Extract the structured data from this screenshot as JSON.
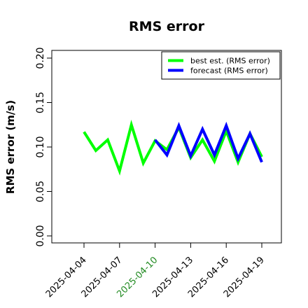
{
  "chart_data": {
    "type": "line",
    "title": "RMS error",
    "xlabel": "",
    "ylabel": "RMS error (m/s)",
    "ylim": [
      0,
      0.21
    ],
    "yticks": [
      "0.00",
      "0.05",
      "0.10",
      "0.15",
      "0.20"
    ],
    "ytick_values": [
      0,
      0.05,
      0.1,
      0.15,
      0.2
    ],
    "xlim": [
      "2025-04-02",
      "2025-04-20"
    ],
    "xticks": [
      "2025-04-04",
      "2025-04-07",
      "2025-04-10",
      "2025-04-13",
      "2025-04-16",
      "2025-04-19"
    ],
    "xtick_colors": [
      "#000000",
      "#000000",
      "#228B22",
      "#000000",
      "#000000",
      "#000000"
    ],
    "grid": false,
    "legend_position": "top-right",
    "series": [
      {
        "name": "best est. (RMS error)",
        "color": "#00ff00",
        "x": [
          "2025-04-04",
          "2025-04-05",
          "2025-04-06",
          "2025-04-07",
          "2025-04-08",
          "2025-04-09",
          "2025-04-10",
          "2025-04-11",
          "2025-04-12",
          "2025-04-13",
          "2025-04-14",
          "2025-04-15",
          "2025-04-16",
          "2025-04-17",
          "2025-04-18",
          "2025-04-19"
        ],
        "values": [
          0.117,
          0.096,
          0.108,
          0.073,
          0.125,
          0.082,
          0.107,
          0.097,
          0.122,
          0.088,
          0.108,
          0.084,
          0.118,
          0.083,
          0.115,
          0.089
        ]
      },
      {
        "name": "forecast (RMS error)",
        "color": "#0000ff",
        "x": [
          "2025-04-10",
          "2025-04-11",
          "2025-04-12",
          "2025-04-13",
          "2025-04-14",
          "2025-04-15",
          "2025-04-16",
          "2025-04-17",
          "2025-04-18",
          "2025-04-19"
        ],
        "values": [
          0.108,
          0.091,
          0.124,
          0.09,
          0.12,
          0.091,
          0.124,
          0.087,
          0.115,
          0.083
        ]
      }
    ]
  }
}
